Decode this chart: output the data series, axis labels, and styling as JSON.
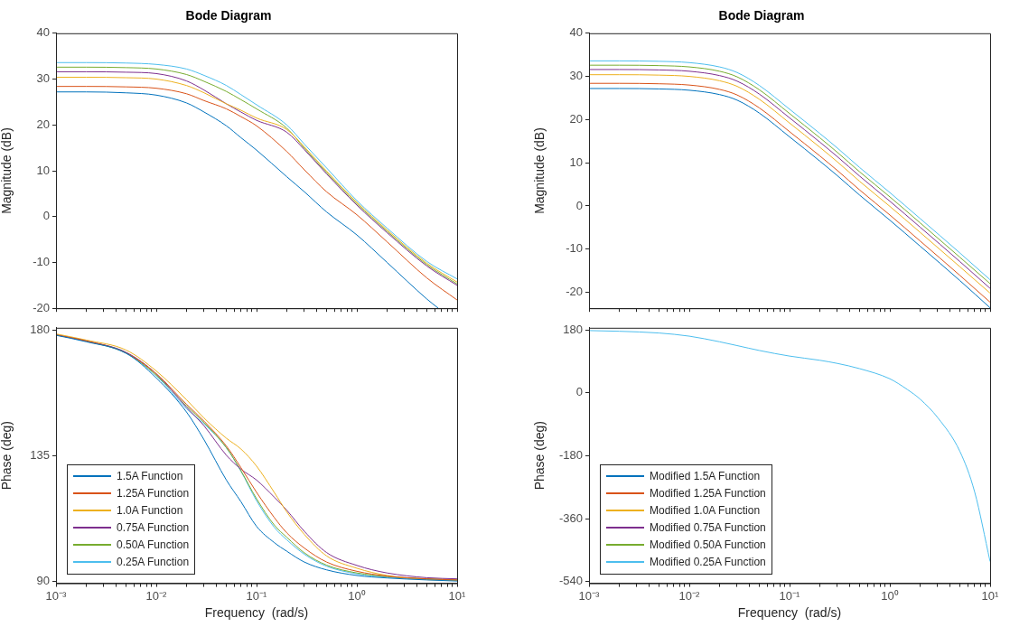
{
  "chart_data": [
    {
      "type": "line",
      "title": "Bode Diagram",
      "ylabel": "Magnitude (dB)",
      "log": "x",
      "tick_labels": "y",
      "legend": false,
      "xlim": [
        0.001,
        10
      ],
      "ylim": [
        -20,
        40
      ],
      "yticks": [
        -20,
        -10,
        0,
        10,
        20,
        30,
        40
      ],
      "xticks": [
        {
          "value": 0.001,
          "label": null
        },
        {
          "value": 0.002,
          "label": null
        },
        {
          "value": 0.003,
          "label": null
        },
        {
          "value": 0.004,
          "label": null
        },
        {
          "value": 0.005,
          "label": null
        },
        {
          "value": 0.006,
          "label": null
        },
        {
          "value": 0.007,
          "label": null
        },
        {
          "value": 0.008,
          "label": null
        },
        {
          "value": 0.009,
          "label": null
        },
        {
          "value": 0.01,
          "label": null
        },
        {
          "value": 0.02,
          "label": null
        },
        {
          "value": 0.03,
          "label": null
        },
        {
          "value": 0.04,
          "label": null
        },
        {
          "value": 0.05,
          "label": null
        },
        {
          "value": 0.06,
          "label": null
        },
        {
          "value": 0.07,
          "label": null
        },
        {
          "value": 0.08,
          "label": null
        },
        {
          "value": 0.09,
          "label": null
        },
        {
          "value": 0.1,
          "label": null
        },
        {
          "value": 0.2,
          "label": null
        },
        {
          "value": 0.3,
          "label": null
        },
        {
          "value": 0.4,
          "label": null
        },
        {
          "value": 0.5,
          "label": null
        },
        {
          "value": 0.6,
          "label": null
        },
        {
          "value": 0.7,
          "label": null
        },
        {
          "value": 0.8,
          "label": null
        },
        {
          "value": 0.9,
          "label": null
        },
        {
          "value": 1,
          "label": null
        },
        {
          "value": 2,
          "label": null
        },
        {
          "value": 3,
          "label": null
        },
        {
          "value": 4,
          "label": null
        },
        {
          "value": 5,
          "label": null
        },
        {
          "value": 6,
          "label": null
        },
        {
          "value": 7,
          "label": null
        },
        {
          "value": 8,
          "label": null
        },
        {
          "value": 9,
          "label": null
        },
        {
          "value": 10,
          "label": null
        }
      ],
      "x": [
        0.001,
        0.002,
        0.005,
        0.01,
        0.02,
        0.03,
        0.05,
        0.07,
        0.1,
        0.2,
        0.3,
        0.5,
        1,
        2,
        5,
        10
      ],
      "series": [
        {
          "color": "#0072bd",
          "x": [
            0.001,
            0.002,
            0.005,
            0.01,
            0.02,
            0.03,
            0.05,
            0.07,
            0.1,
            0.2,
            0.3,
            0.5,
            1,
            2,
            5,
            6.5
          ],
          "values": [
            27.2,
            27.2,
            27.0,
            26.5,
            24.8,
            22.8,
            19.8,
            17.2,
            14.5,
            8.7,
            5.4,
            1.0,
            -4.0,
            -10.0,
            -18.0,
            -20.0
          ]
        },
        {
          "color": "#d95319",
          "values": [
            28.4,
            28.4,
            28.3,
            28.0,
            26.8,
            25.3,
            23.5,
            21.8,
            19.8,
            14.2,
            10.2,
            5.4,
            0.4,
            -5.5,
            -13.4,
            -18.2
          ]
        },
        {
          "color": "#edb120",
          "values": [
            30.4,
            30.4,
            30.3,
            30.0,
            28.6,
            27.0,
            24.6,
            23.2,
            21.5,
            19.0,
            15.2,
            9.9,
            3.1,
            -2.9,
            -10.2,
            -14.3
          ]
        },
        {
          "color": "#7e2f8e",
          "values": [
            31.6,
            31.6,
            31.5,
            31.2,
            29.6,
            27.6,
            24.6,
            22.8,
            21.0,
            18.4,
            14.6,
            9.3,
            2.5,
            -3.5,
            -10.8,
            -15.0
          ]
        },
        {
          "color": "#77ac30",
          "values": [
            32.6,
            32.6,
            32.5,
            32.2,
            31.0,
            29.5,
            27.3,
            25.5,
            23.5,
            19.3,
            14.9,
            9.6,
            2.8,
            -3.2,
            -10.5,
            -14.7
          ]
        },
        {
          "color": "#4dbeee",
          "values": [
            33.6,
            33.6,
            33.5,
            33.2,
            32.2,
            30.8,
            28.6,
            26.6,
            24.4,
            20.0,
            15.8,
            10.6,
            3.5,
            -2.5,
            -9.8,
            -13.6
          ]
        }
      ]
    },
    {
      "type": "line",
      "title": "Bode Diagram",
      "ylabel": "Magnitude (dB)",
      "log": "x",
      "tick_labels": "y",
      "legend": false,
      "xlim": [
        0.001,
        10
      ],
      "ylim": [
        -23.7,
        40
      ],
      "yticks": [
        -20,
        -10,
        0,
        10,
        20,
        30,
        40
      ],
      "xticks": [
        {
          "value": 0.001,
          "label": null
        },
        {
          "value": 0.002,
          "label": null
        },
        {
          "value": 0.003,
          "label": null
        },
        {
          "value": 0.004,
          "label": null
        },
        {
          "value": 0.005,
          "label": null
        },
        {
          "value": 0.006,
          "label": null
        },
        {
          "value": 0.007,
          "label": null
        },
        {
          "value": 0.008,
          "label": null
        },
        {
          "value": 0.009,
          "label": null
        },
        {
          "value": 0.01,
          "label": null
        },
        {
          "value": 0.02,
          "label": null
        },
        {
          "value": 0.03,
          "label": null
        },
        {
          "value": 0.04,
          "label": null
        },
        {
          "value": 0.05,
          "label": null
        },
        {
          "value": 0.06,
          "label": null
        },
        {
          "value": 0.07,
          "label": null
        },
        {
          "value": 0.08,
          "label": null
        },
        {
          "value": 0.09,
          "label": null
        },
        {
          "value": 0.1,
          "label": null
        },
        {
          "value": 0.2,
          "label": null
        },
        {
          "value": 0.3,
          "label": null
        },
        {
          "value": 0.4,
          "label": null
        },
        {
          "value": 0.5,
          "label": null
        },
        {
          "value": 0.6,
          "label": null
        },
        {
          "value": 0.7,
          "label": null
        },
        {
          "value": 0.8,
          "label": null
        },
        {
          "value": 0.9,
          "label": null
        },
        {
          "value": 1,
          "label": null
        },
        {
          "value": 2,
          "label": null
        },
        {
          "value": 3,
          "label": null
        },
        {
          "value": 4,
          "label": null
        },
        {
          "value": 5,
          "label": null
        },
        {
          "value": 6,
          "label": null
        },
        {
          "value": 7,
          "label": null
        },
        {
          "value": 8,
          "label": null
        },
        {
          "value": 9,
          "label": null
        },
        {
          "value": 10,
          "label": null
        }
      ],
      "x": [
        0.001,
        0.002,
        0.005,
        0.01,
        0.02,
        0.03,
        0.05,
        0.1,
        0.2,
        0.3,
        0.5,
        1,
        2,
        5,
        10
      ],
      "series": [
        {
          "color": "#0072bd",
          "values": [
            27.2,
            27.2,
            27.1,
            26.8,
            25.8,
            24.5,
            21.5,
            16.0,
            10.4,
            7.0,
            2.5,
            -3.3,
            -9.3,
            -17.3,
            -23.6
          ]
        },
        {
          "color": "#d95319",
          "values": [
            28.4,
            28.4,
            28.3,
            28.0,
            27.0,
            25.7,
            22.7,
            17.2,
            11.6,
            8.2,
            3.7,
            -2.1,
            -8.1,
            -16.1,
            -22.3
          ]
        },
        {
          "color": "#edb120",
          "values": [
            30.4,
            30.4,
            30.3,
            30.0,
            29.0,
            27.7,
            24.7,
            19.2,
            13.6,
            10.2,
            5.7,
            -0.1,
            -6.1,
            -14.1,
            -20.2
          ]
        },
        {
          "color": "#7e2f8e",
          "values": [
            31.6,
            31.6,
            31.5,
            31.2,
            30.2,
            28.9,
            25.9,
            20.4,
            14.8,
            11.4,
            6.9,
            1.1,
            -4.9,
            -12.9,
            -19.1
          ]
        },
        {
          "color": "#77ac30",
          "values": [
            32.6,
            32.6,
            32.5,
            32.2,
            31.2,
            29.9,
            26.9,
            21.4,
            15.8,
            12.4,
            7.9,
            2.1,
            -3.9,
            -11.9,
            -18.0
          ]
        },
        {
          "color": "#4dbeee",
          "values": [
            33.6,
            33.6,
            33.5,
            33.2,
            32.2,
            30.9,
            27.9,
            22.4,
            16.8,
            13.4,
            8.9,
            3.1,
            -2.9,
            -10.9,
            -17.1
          ]
        }
      ]
    },
    {
      "type": "line",
      "xlabel": "Frequency  (rad/s)",
      "ylabel": "Phase (deg)",
      "log": "x",
      "legend": "bottom left",
      "xlim": [
        0.001,
        10
      ],
      "ylim": [
        89.4,
        181
      ],
      "yticks": [
        90,
        135,
        180
      ],
      "xticks": [
        {
          "value": 0.001,
          "label": "10⁻³"
        },
        {
          "value": 0.002,
          "label": null
        },
        {
          "value": 0.003,
          "label": null
        },
        {
          "value": 0.004,
          "label": null
        },
        {
          "value": 0.005,
          "label": null
        },
        {
          "value": 0.006,
          "label": null
        },
        {
          "value": 0.007,
          "label": null
        },
        {
          "value": 0.008,
          "label": null
        },
        {
          "value": 0.009,
          "label": null
        },
        {
          "value": 0.01,
          "label": "10⁻²"
        },
        {
          "value": 0.02,
          "label": null
        },
        {
          "value": 0.03,
          "label": null
        },
        {
          "value": 0.04,
          "label": null
        },
        {
          "value": 0.05,
          "label": null
        },
        {
          "value": 0.06,
          "label": null
        },
        {
          "value": 0.07,
          "label": null
        },
        {
          "value": 0.08,
          "label": null
        },
        {
          "value": 0.09,
          "label": null
        },
        {
          "value": 0.1,
          "label": "10⁻¹"
        },
        {
          "value": 0.2,
          "label": null
        },
        {
          "value": 0.3,
          "label": null
        },
        {
          "value": 0.4,
          "label": null
        },
        {
          "value": 0.5,
          "label": null
        },
        {
          "value": 0.6,
          "label": null
        },
        {
          "value": 0.7,
          "label": null
        },
        {
          "value": 0.8,
          "label": null
        },
        {
          "value": 0.9,
          "label": null
        },
        {
          "value": 1,
          "label": "10⁰"
        },
        {
          "value": 2,
          "label": null
        },
        {
          "value": 3,
          "label": null
        },
        {
          "value": 4,
          "label": null
        },
        {
          "value": 5,
          "label": null
        },
        {
          "value": 6,
          "label": null
        },
        {
          "value": 7,
          "label": null
        },
        {
          "value": 8,
          "label": null
        },
        {
          "value": 9,
          "label": null
        },
        {
          "value": 10,
          "label": "10¹"
        }
      ],
      "x": [
        0.001,
        0.002,
        0.005,
        0.01,
        0.02,
        0.03,
        0.05,
        0.07,
        0.1,
        0.15,
        0.2,
        0.3,
        0.5,
        1,
        2,
        5,
        10
      ],
      "series": [
        {
          "name": "1.5A Function",
          "color": "#0072bd",
          "values": [
            178.3,
            176.0,
            171.9,
            163.0,
            150.8,
            140.8,
            126.4,
            118.6,
            109.8,
            104.0,
            100.9,
            97.0,
            94.2,
            92.2,
            91.3,
            90.6,
            90.2
          ]
        },
        {
          "name": "1.25A Function",
          "color": "#d95319",
          "values": [
            178.4,
            176.3,
            172.0,
            164.5,
            153.6,
            147.5,
            138.6,
            130.8,
            122.0,
            113.0,
            107.5,
            102.0,
            97.0,
            93.7,
            92.0,
            91.0,
            90.6
          ]
        },
        {
          "name": "1.0A Function",
          "color": "#edb120",
          "values": [
            178.8,
            176.6,
            173.0,
            165.5,
            155.2,
            148.6,
            141.4,
            137.5,
            131.4,
            122.0,
            115.0,
            106.9,
            99.2,
            94.8,
            92.2,
            90.7,
            90.4
          ]
        },
        {
          "name": "0.75A Function",
          "color": "#7e2f8e",
          "values": [
            178.5,
            176.3,
            172.2,
            164.5,
            152.5,
            145.8,
            135.3,
            130.3,
            126.4,
            120.3,
            115.6,
            108.0,
            100.4,
            95.8,
            93.1,
            91.4,
            91.0
          ]
        },
        {
          "name": "0.50A Function",
          "color": "#77ac30",
          "values": [
            178.5,
            176.2,
            172.0,
            164.0,
            153.0,
            147.0,
            138.0,
            129.7,
            119.7,
            110.3,
            105.9,
            100.3,
            95.9,
            93.1,
            91.8,
            91.0,
            90.6
          ]
        },
        {
          "name": "0.25A Function",
          "color": "#4dbeee",
          "values": [
            178.5,
            176.2,
            171.8,
            163.8,
            152.0,
            146.5,
            138.0,
            129.5,
            119.0,
            109.5,
            105.0,
            99.8,
            95.5,
            92.8,
            91.6,
            90.9,
            90.6
          ]
        }
      ]
    },
    {
      "type": "line",
      "xlabel": "Frequency  (rad/s)",
      "ylabel": "Phase (deg)",
      "log": "x",
      "legend": "bottom left",
      "xlim": [
        0.001,
        10
      ],
      "ylim": [
        -545,
        186
      ],
      "yticks": [
        -540,
        -360,
        -180,
        0,
        180
      ],
      "xticks": [
        {
          "value": 0.001,
          "label": "10⁻³"
        },
        {
          "value": 0.002,
          "label": null
        },
        {
          "value": 0.003,
          "label": null
        },
        {
          "value": 0.004,
          "label": null
        },
        {
          "value": 0.005,
          "label": null
        },
        {
          "value": 0.006,
          "label": null
        },
        {
          "value": 0.007,
          "label": null
        },
        {
          "value": 0.008,
          "label": null
        },
        {
          "value": 0.009,
          "label": null
        },
        {
          "value": 0.01,
          "label": "10⁻²"
        },
        {
          "value": 0.02,
          "label": null
        },
        {
          "value": 0.03,
          "label": null
        },
        {
          "value": 0.04,
          "label": null
        },
        {
          "value": 0.05,
          "label": null
        },
        {
          "value": 0.06,
          "label": null
        },
        {
          "value": 0.07,
          "label": null
        },
        {
          "value": 0.08,
          "label": null
        },
        {
          "value": 0.09,
          "label": null
        },
        {
          "value": 0.1,
          "label": "10⁻¹"
        },
        {
          "value": 0.2,
          "label": null
        },
        {
          "value": 0.3,
          "label": null
        },
        {
          "value": 0.4,
          "label": null
        },
        {
          "value": 0.5,
          "label": null
        },
        {
          "value": 0.6,
          "label": null
        },
        {
          "value": 0.7,
          "label": null
        },
        {
          "value": 0.8,
          "label": null
        },
        {
          "value": 0.9,
          "label": null
        },
        {
          "value": 1,
          "label": "10⁰"
        },
        {
          "value": 2,
          "label": null
        },
        {
          "value": 3,
          "label": null
        },
        {
          "value": 4,
          "label": null
        },
        {
          "value": 5,
          "label": null
        },
        {
          "value": 6,
          "label": null
        },
        {
          "value": 7,
          "label": null
        },
        {
          "value": 8,
          "label": null
        },
        {
          "value": 9,
          "label": null
        },
        {
          "value": 10,
          "label": "10¹"
        }
      ],
      "x": [
        0.001,
        0.002,
        0.005,
        0.01,
        0.02,
        0.03,
        0.05,
        0.1,
        0.2,
        0.3,
        0.5,
        1,
        1.5,
        2,
        3,
        5,
        7,
        10
      ],
      "series": [
        {
          "name": "Modified 1.5A Function",
          "color": "#0072bd",
          "values": [
            null,
            null,
            null,
            null,
            null,
            null,
            null,
            null,
            null,
            null,
            null,
            null,
            null,
            null,
            null,
            null,
            null,
            null
          ]
        },
        {
          "name": "Modified 1.25A Function",
          "color": "#d95319",
          "values": [
            null,
            null,
            null,
            null,
            null,
            null,
            null,
            null,
            null,
            null,
            null,
            null,
            null,
            null,
            null,
            null,
            null,
            null
          ]
        },
        {
          "name": "Modified 1.0A Function",
          "color": "#edb120",
          "values": [
            null,
            null,
            null,
            null,
            null,
            null,
            null,
            null,
            null,
            null,
            null,
            null,
            null,
            null,
            null,
            null,
            null,
            null
          ]
        },
        {
          "name": "Modified 0.75A Function",
          "color": "#7e2f8e",
          "values": [
            null,
            null,
            null,
            null,
            null,
            null,
            null,
            null,
            null,
            null,
            null,
            null,
            null,
            null,
            null,
            null,
            null,
            null
          ]
        },
        {
          "name": "Modified 0.50A Function",
          "color": "#77ac30",
          "values": [
            null,
            null,
            null,
            null,
            null,
            null,
            null,
            null,
            null,
            null,
            null,
            null,
            null,
            null,
            null,
            null,
            null,
            null
          ]
        },
        {
          "name": "Modified 0.25A Function",
          "color": "#4dbeee",
          "values": [
            178,
            176,
            171,
            162,
            146,
            135,
            121,
            105,
            93,
            84,
            69,
            40,
            9,
            -18,
            -71,
            -168,
            -283,
            -483
          ]
        }
      ]
    }
  ]
}
